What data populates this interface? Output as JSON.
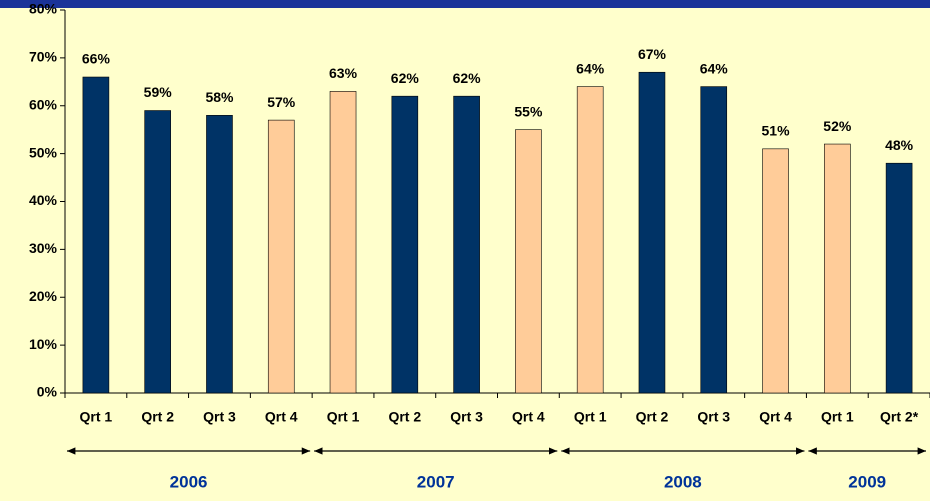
{
  "chart_data": {
    "type": "bar",
    "categories": [
      "Qrt 1",
      "Qrt 2",
      "Qrt 3",
      "Qrt 4",
      "Qrt 1",
      "Qrt 2",
      "Qrt 3",
      "Qrt 4",
      "Qrt 1",
      "Qrt 2",
      "Qrt 3",
      "Qrt 4",
      "Qrt 1",
      "Qrt 2*"
    ],
    "values": [
      66,
      59,
      58,
      57,
      63,
      62,
      62,
      55,
      64,
      67,
      64,
      51,
      52,
      48
    ],
    "value_labels": [
      "66%",
      "59%",
      "58%",
      "57%",
      "63%",
      "62%",
      "62%",
      "55%",
      "64%",
      "67%",
      "64%",
      "51%",
      "52%",
      "48%"
    ],
    "colors": [
      "#003366",
      "#003366",
      "#003366",
      "#FFCC99",
      "#FFCC99",
      "#003366",
      "#003366",
      "#FFCC99",
      "#FFCC99",
      "#003366",
      "#003366",
      "#FFCC99",
      "#FFCC99",
      "#003366"
    ],
    "groups": [
      {
        "label": "2006",
        "count": 4
      },
      {
        "label": "2007",
        "count": 4
      },
      {
        "label": "2008",
        "count": 4
      },
      {
        "label": "2009",
        "count": 2
      }
    ],
    "ylim": [
      0,
      80
    ],
    "yticks": [
      {
        "value": 0,
        "label": "0%"
      },
      {
        "value": 10,
        "label": "10%"
      },
      {
        "value": 20,
        "label": "20%"
      },
      {
        "value": 30,
        "label": "30%"
      },
      {
        "value": 40,
        "label": "40%"
      },
      {
        "value": 50,
        "label": "50%"
      },
      {
        "value": 60,
        "label": "60%"
      },
      {
        "value": 70,
        "label": "70%"
      },
      {
        "value": 80,
        "label": "80%"
      }
    ]
  }
}
